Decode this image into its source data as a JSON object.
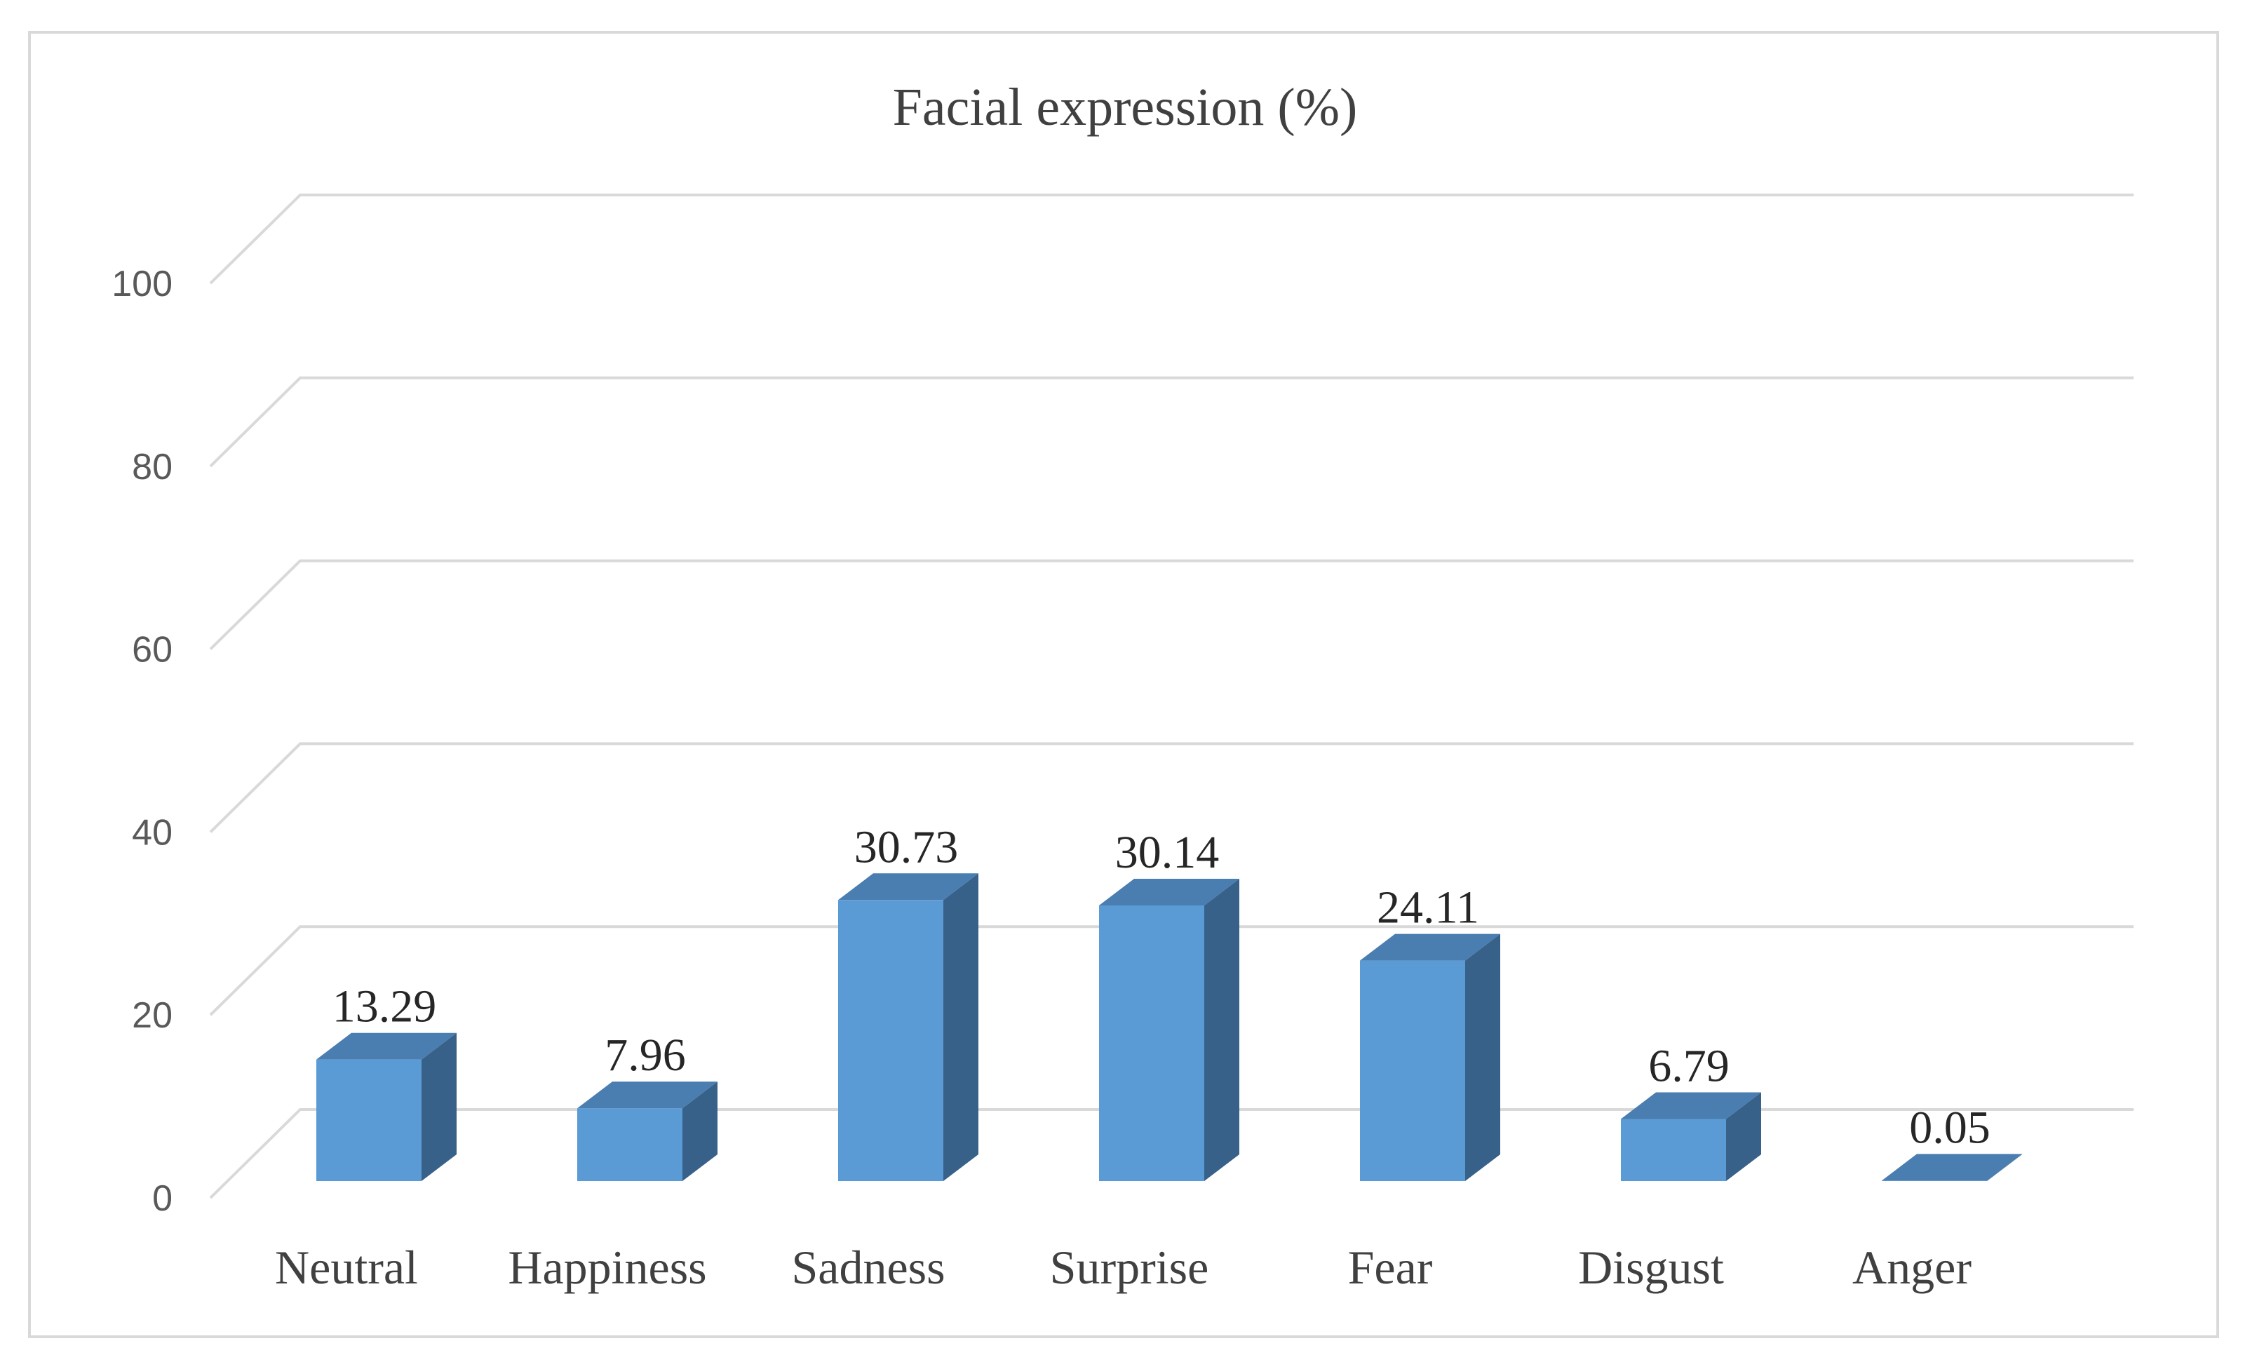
{
  "chart_data": {
    "type": "bar",
    "title": "Facial expression (%)",
    "xlabel": "",
    "ylabel": "",
    "categories": [
      "Neutral",
      "Happiness",
      "Sadness",
      "Surprise",
      "Fear",
      "Disgust",
      "Anger"
    ],
    "values": [
      13.29,
      7.96,
      30.73,
      30.14,
      24.11,
      6.79,
      0.05
    ],
    "data_labels": [
      "13.29",
      "7.96",
      "30.73",
      "30.14",
      "24.11",
      "6.79",
      "0.05"
    ],
    "ylim": [
      0,
      100
    ],
    "yticks": [
      0,
      20,
      40,
      60,
      80,
      100
    ],
    "ytick_labels": [
      "0",
      "20",
      "40",
      "60",
      "80",
      "100"
    ],
    "grid": true,
    "legend": "none",
    "style": "3d-column",
    "colors": {
      "bar_front": "#5b9bd5",
      "bar_side": "#386189",
      "bar_top": "#4a7db0",
      "grid": "#d9d9d9",
      "frame": "#d9d9d9"
    }
  }
}
